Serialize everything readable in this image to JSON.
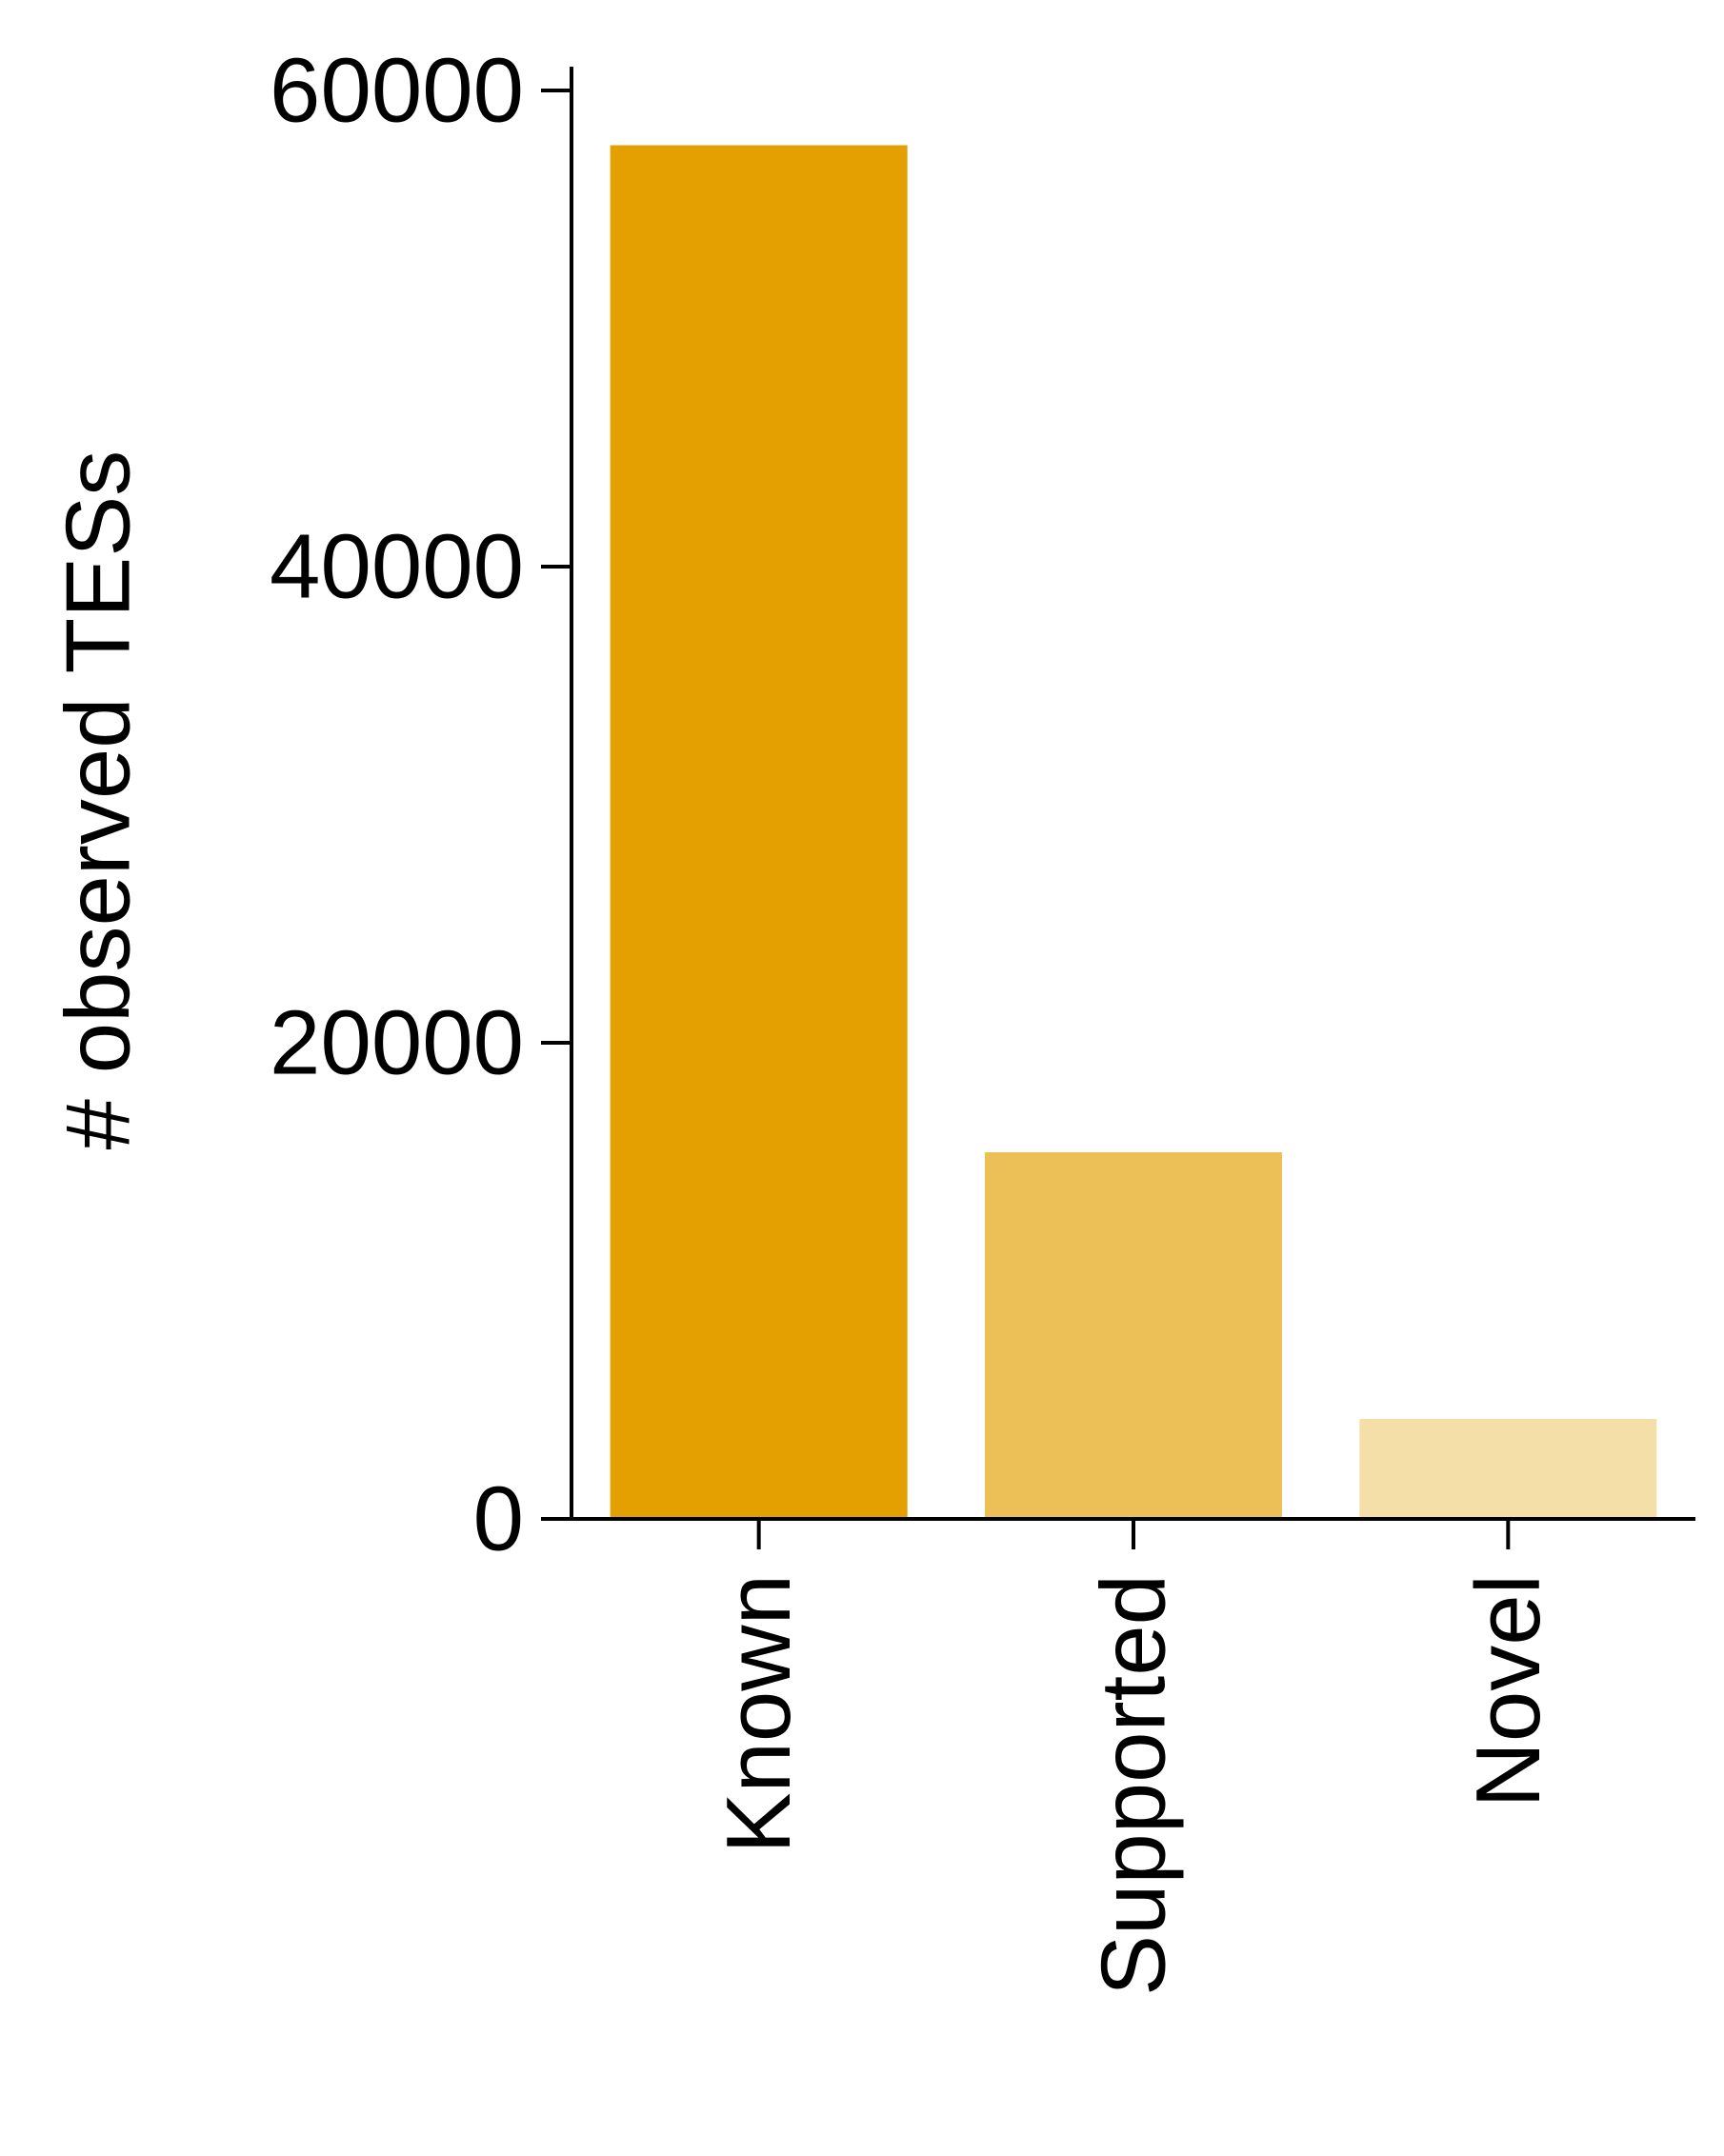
{
  "chart_data": {
    "type": "bar",
    "title": "",
    "xlabel": "",
    "ylabel": "# observed TESs",
    "categories": [
      "Known",
      "Supported",
      "Novel"
    ],
    "values": [
      57700,
      15400,
      4200
    ],
    "colors": [
      "#E3A000",
      "#EDBF57",
      "#F5DFA8"
    ],
    "ylim": [
      0,
      61000
    ],
    "yticks": [
      0,
      20000,
      40000,
      60000
    ],
    "ytick_labels": [
      "0",
      "20000",
      "40000",
      "60000"
    ],
    "grid": false,
    "legend": "none"
  }
}
